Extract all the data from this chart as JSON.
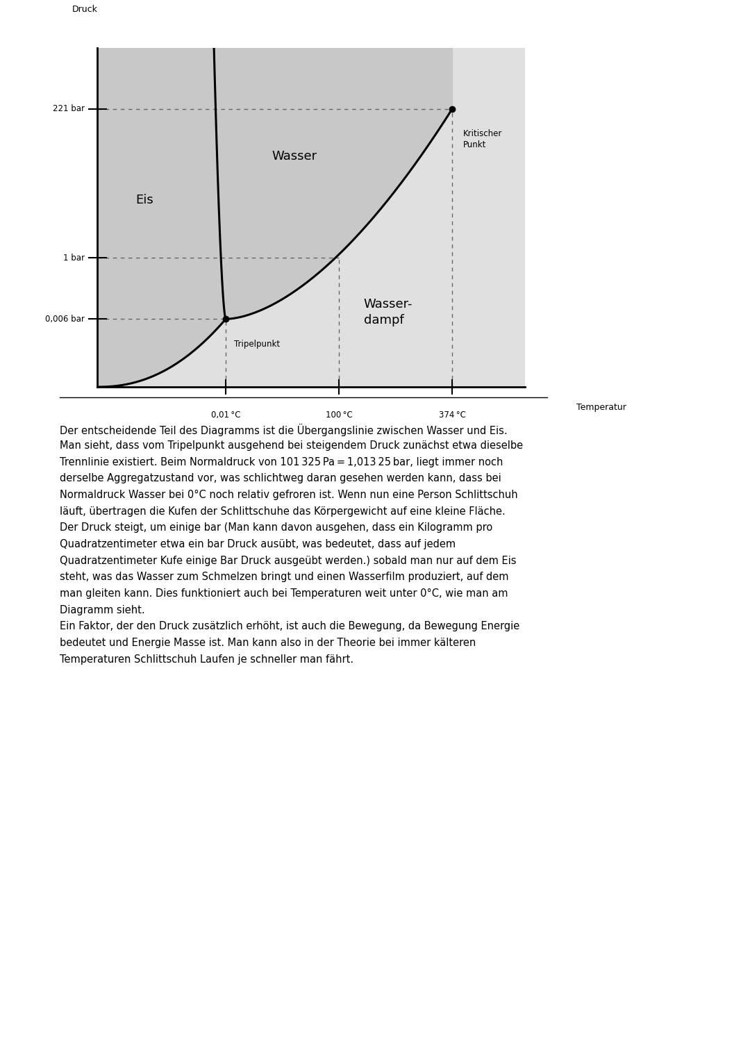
{
  "bg_color": "#ffffff",
  "diagram_dark_gray": "#c8c8c8",
  "diagram_light_gray": "#e0e0e0",
  "phase_line_color": "#000000",
  "dashed_line_color": "#666666",
  "text_color": "#000000",
  "ylabel": "Druck",
  "xlabel": "Temperatur",
  "pressure_labels": [
    "0,006 bar",
    "1 bar",
    "221 bar"
  ],
  "temp_labels": [
    "0,01 °C",
    "100 °C",
    "374 °C"
  ],
  "region_eis": "Eis",
  "region_wasser": "Wasser",
  "region_dampf": "Wasser-\ndampf",
  "critical_point_label": "Kritischer\nPunkt",
  "triple_point_label": "Tripelpunkt",
  "paragraph1_line1": "Der entscheidende Teil des Diagramms ist die Übergangslinie zwischen Wasser und Eis.",
  "paragraph1_line2": "Man sieht, dass vom Tripelpunkt ausgehend bei steigendem Druck zunächst etwa dieselbe",
  "paragraph1_line3": "Trennlinie existiert. Beim Normaldruck von 101 325 Pa = 1,013 25 bar, liegt immer noch",
  "paragraph1_line4": "derselbe Aggregatzustand vor, was schlichtweg daran gesehen werden kann, dass bei",
  "paragraph1_line5": "Normaldruck Wasser bei 0°C noch relativ gefroren ist. Wenn nun eine Person Schlittschuh",
  "paragraph1_line6": "läuft, übertragen die Kufen der Schlittschuhe das Körpergewicht auf eine kleine Fläche.",
  "paragraph1_line7": "Der Druck steigt, um einige bar (Man kann davon ausgehen, dass ein Kilogramm pro",
  "paragraph1_line8": "Quadratzentimeter etwa ein bar Druck ausübt, was bedeutet, dass auf jedem",
  "paragraph1_line9": "Quadratzentimeter Kufe einige Bar Druck ausgeübt werden.) sobald man nur auf dem Eis",
  "paragraph1_line10": "steht, was das Wasser zum Schmelzen bringt und einen Wasserfilm produziert, auf dem",
  "paragraph1_line11": "man gleiten kann. Dies funktioniert auch bei Temperaturen weit unter 0°C, wie man am",
  "paragraph1_line12": "Diagramm sieht.",
  "paragraph2_line1": "Ein Faktor, der den Druck zusätzlich erhöht, ist auch die Bewegung, da Bewegung Energie",
  "paragraph2_line2": "bedeutet und Energie Masse ist. Man kann also in der Theorie bei immer kälteren",
  "paragraph2_line3": "Temperaturen Schlittschuh Laufen je schneller man fährt."
}
